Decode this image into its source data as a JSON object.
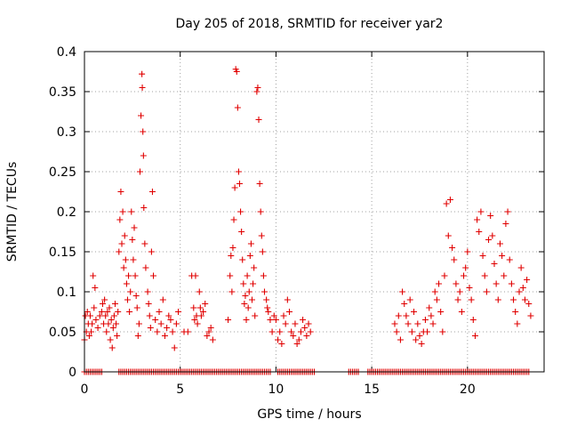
{
  "chart_data": {
    "type": "scatter",
    "title": "Day 205 of 2018, SRMTID for receiver yar2",
    "xlabel": "GPS time / hours",
    "ylabel": "SRMTID / TECUs",
    "xlim": [
      0,
      24
    ],
    "ylim": [
      0,
      0.4
    ],
    "xticks": [
      0,
      5,
      10,
      15,
      20
    ],
    "xtick_labels": [
      "0",
      "5",
      "10",
      "15",
      "20"
    ],
    "yticks": [
      0,
      0.05,
      0.1,
      0.15,
      0.2,
      0.25,
      0.3,
      0.35,
      0.4
    ],
    "ytick_labels": [
      "0",
      "0.05",
      "0.1",
      "0.15",
      "0.2",
      "0.25",
      "0.3",
      "0.35",
      "0.4"
    ],
    "grid": true,
    "marker": "+",
    "color": "#e00000",
    "series": [
      {
        "name": "SRMTID",
        "points": [
          [
            0.0,
            0.04
          ],
          [
            0.05,
            0.07
          ],
          [
            0.1,
            0.05
          ],
          [
            0.15,
            0.075
          ],
          [
            0.2,
            0.06
          ],
          [
            0.25,
            0.045
          ],
          [
            0.3,
            0.07
          ],
          [
            0.35,
            0.05
          ],
          [
            0.4,
            0.06
          ],
          [
            0.45,
            0.12
          ],
          [
            0.5,
            0.08
          ],
          [
            0.55,
            0.105
          ],
          [
            0.6,
            0.065
          ],
          [
            0.7,
            0.055
          ],
          [
            0.8,
            0.07
          ],
          [
            0.9,
            0.075
          ],
          [
            0.95,
            0.085
          ],
          [
            1.0,
            0.06
          ],
          [
            1.05,
            0.09
          ],
          [
            1.1,
            0.07
          ],
          [
            1.15,
            0.05
          ],
          [
            1.2,
            0.075
          ],
          [
            1.25,
            0.06
          ],
          [
            1.3,
            0.08
          ],
          [
            1.35,
            0.04
          ],
          [
            1.4,
            0.065
          ],
          [
            1.45,
            0.03
          ],
          [
            1.5,
            0.055
          ],
          [
            1.55,
            0.07
          ],
          [
            1.6,
            0.085
          ],
          [
            1.65,
            0.06
          ],
          [
            1.7,
            0.045
          ],
          [
            1.75,
            0.075
          ],
          [
            1.8,
            0.15
          ],
          [
            1.85,
            0.19
          ],
          [
            1.9,
            0.225
          ],
          [
            1.95,
            0.16
          ],
          [
            2.0,
            0.2
          ],
          [
            2.05,
            0.13
          ],
          [
            2.1,
            0.17
          ],
          [
            2.15,
            0.14
          ],
          [
            2.2,
            0.11
          ],
          [
            2.25,
            0.09
          ],
          [
            2.3,
            0.12
          ],
          [
            2.35,
            0.075
          ],
          [
            2.4,
            0.1
          ],
          [
            2.45,
            0.2
          ],
          [
            2.5,
            0.165
          ],
          [
            2.55,
            0.14
          ],
          [
            2.6,
            0.18
          ],
          [
            2.65,
            0.12
          ],
          [
            2.7,
            0.095
          ],
          [
            2.75,
            0.08
          ],
          [
            2.8,
            0.045
          ],
          [
            2.85,
            0.06
          ],
          [
            2.9,
            0.25
          ],
          [
            2.95,
            0.32
          ],
          [
            3.0,
            0.372
          ],
          [
            3.02,
            0.355
          ],
          [
            3.05,
            0.3
          ],
          [
            3.08,
            0.27
          ],
          [
            3.1,
            0.205
          ],
          [
            3.15,
            0.16
          ],
          [
            3.2,
            0.13
          ],
          [
            3.3,
            0.1
          ],
          [
            3.35,
            0.085
          ],
          [
            3.4,
            0.07
          ],
          [
            3.45,
            0.055
          ],
          [
            3.5,
            0.15
          ],
          [
            3.55,
            0.225
          ],
          [
            3.6,
            0.12
          ],
          [
            3.7,
            0.065
          ],
          [
            3.8,
            0.05
          ],
          [
            3.9,
            0.075
          ],
          [
            4.0,
            0.06
          ],
          [
            4.1,
            0.09
          ],
          [
            4.2,
            0.045
          ],
          [
            4.3,
            0.055
          ],
          [
            4.4,
            0.07
          ],
          [
            4.5,
            0.065
          ],
          [
            4.6,
            0.05
          ],
          [
            4.7,
            0.03
          ],
          [
            4.8,
            0.06
          ],
          [
            4.9,
            0.075
          ],
          [
            5.2,
            0.05
          ],
          [
            5.4,
            0.05
          ],
          [
            5.6,
            0.12
          ],
          [
            5.7,
            0.08
          ],
          [
            5.75,
            0.065
          ],
          [
            5.8,
            0.12
          ],
          [
            5.85,
            0.07
          ],
          [
            5.9,
            0.06
          ],
          [
            6.0,
            0.1
          ],
          [
            6.05,
            0.08
          ],
          [
            6.1,
            0.07
          ],
          [
            6.2,
            0.075
          ],
          [
            6.3,
            0.085
          ],
          [
            6.4,
            0.045
          ],
          [
            6.5,
            0.05
          ],
          [
            6.6,
            0.055
          ],
          [
            6.7,
            0.04
          ],
          [
            7.5,
            0.065
          ],
          [
            7.6,
            0.12
          ],
          [
            7.65,
            0.145
          ],
          [
            7.7,
            0.1
          ],
          [
            7.75,
            0.155
          ],
          [
            7.8,
            0.19
          ],
          [
            7.85,
            0.23
          ],
          [
            7.9,
            0.378
          ],
          [
            7.95,
            0.375
          ],
          [
            8.0,
            0.33
          ],
          [
            8.05,
            0.25
          ],
          [
            8.1,
            0.235
          ],
          [
            8.15,
            0.2
          ],
          [
            8.2,
            0.175
          ],
          [
            8.25,
            0.14
          ],
          [
            8.3,
            0.11
          ],
          [
            8.35,
            0.085
          ],
          [
            8.4,
            0.095
          ],
          [
            8.45,
            0.065
          ],
          [
            8.5,
            0.12
          ],
          [
            8.55,
            0.08
          ],
          [
            8.6,
            0.1
          ],
          [
            8.65,
            0.145
          ],
          [
            8.7,
            0.16
          ],
          [
            8.75,
            0.09
          ],
          [
            8.8,
            0.11
          ],
          [
            8.85,
            0.13
          ],
          [
            8.9,
            0.07
          ],
          [
            9.0,
            0.35
          ],
          [
            9.05,
            0.355
          ],
          [
            9.1,
            0.315
          ],
          [
            9.15,
            0.235
          ],
          [
            9.2,
            0.2
          ],
          [
            9.25,
            0.17
          ],
          [
            9.3,
            0.15
          ],
          [
            9.35,
            0.12
          ],
          [
            9.4,
            0.1
          ],
          [
            9.5,
            0.09
          ],
          [
            9.55,
            0.08
          ],
          [
            9.6,
            0.075
          ],
          [
            9.7,
            0.065
          ],
          [
            9.8,
            0.05
          ],
          [
            9.9,
            0.07
          ],
          [
            10.0,
            0.065
          ],
          [
            10.1,
            0.04
          ],
          [
            10.2,
            0.05
          ],
          [
            10.3,
            0.035
          ],
          [
            10.4,
            0.07
          ],
          [
            10.5,
            0.06
          ],
          [
            10.6,
            0.09
          ],
          [
            10.7,
            0.075
          ],
          [
            10.8,
            0.05
          ],
          [
            10.9,
            0.045
          ],
          [
            11.0,
            0.06
          ],
          [
            11.1,
            0.035
          ],
          [
            11.2,
            0.04
          ],
          [
            11.3,
            0.05
          ],
          [
            11.4,
            0.065
          ],
          [
            11.5,
            0.055
          ],
          [
            11.6,
            0.045
          ],
          [
            11.7,
            0.06
          ],
          [
            11.8,
            0.05
          ],
          [
            16.2,
            0.06
          ],
          [
            16.3,
            0.05
          ],
          [
            16.4,
            0.07
          ],
          [
            16.5,
            0.04
          ],
          [
            16.6,
            0.1
          ],
          [
            16.7,
            0.085
          ],
          [
            16.8,
            0.07
          ],
          [
            16.9,
            0.06
          ],
          [
            17.0,
            0.09
          ],
          [
            17.1,
            0.05
          ],
          [
            17.2,
            0.075
          ],
          [
            17.3,
            0.04
          ],
          [
            17.4,
            0.06
          ],
          [
            17.5,
            0.045
          ],
          [
            17.6,
            0.035
          ],
          [
            17.7,
            0.05
          ],
          [
            17.8,
            0.065
          ],
          [
            17.9,
            0.05
          ],
          [
            18.0,
            0.08
          ],
          [
            18.1,
            0.07
          ],
          [
            18.2,
            0.06
          ],
          [
            18.3,
            0.1
          ],
          [
            18.4,
            0.09
          ],
          [
            18.5,
            0.11
          ],
          [
            18.6,
            0.075
          ],
          [
            18.7,
            0.05
          ],
          [
            18.8,
            0.12
          ],
          [
            18.9,
            0.21
          ],
          [
            19.0,
            0.17
          ],
          [
            19.1,
            0.215
          ],
          [
            19.2,
            0.155
          ],
          [
            19.3,
            0.14
          ],
          [
            19.4,
            0.11
          ],
          [
            19.5,
            0.09
          ],
          [
            19.6,
            0.1
          ],
          [
            19.7,
            0.075
          ],
          [
            19.8,
            0.12
          ],
          [
            19.9,
            0.13
          ],
          [
            20.0,
            0.15
          ],
          [
            20.1,
            0.105
          ],
          [
            20.2,
            0.09
          ],
          [
            20.3,
            0.065
          ],
          [
            20.4,
            0.045
          ],
          [
            20.5,
            0.19
          ],
          [
            20.6,
            0.175
          ],
          [
            20.7,
            0.2
          ],
          [
            20.8,
            0.145
          ],
          [
            20.9,
            0.12
          ],
          [
            21.0,
            0.1
          ],
          [
            21.1,
            0.165
          ],
          [
            21.2,
            0.195
          ],
          [
            21.3,
            0.17
          ],
          [
            21.4,
            0.135
          ],
          [
            21.5,
            0.11
          ],
          [
            21.6,
            0.09
          ],
          [
            21.7,
            0.16
          ],
          [
            21.8,
            0.145
          ],
          [
            21.9,
            0.12
          ],
          [
            22.0,
            0.185
          ],
          [
            22.1,
            0.2
          ],
          [
            22.2,
            0.14
          ],
          [
            22.3,
            0.11
          ],
          [
            22.4,
            0.09
          ],
          [
            22.5,
            0.075
          ],
          [
            22.6,
            0.06
          ],
          [
            22.7,
            0.1
          ],
          [
            22.8,
            0.13
          ],
          [
            22.9,
            0.105
          ],
          [
            23.0,
            0.09
          ],
          [
            23.1,
            0.115
          ],
          [
            23.2,
            0.085
          ],
          [
            23.3,
            0.07
          ]
        ],
        "zero_intervals": [
          [
            0.0,
            0.9
          ],
          [
            1.8,
            5.0
          ],
          [
            5.1,
            9.7
          ],
          [
            10.1,
            12.0
          ],
          [
            13.8,
            14.3
          ],
          [
            14.8,
            23.2
          ]
        ]
      }
    ]
  }
}
